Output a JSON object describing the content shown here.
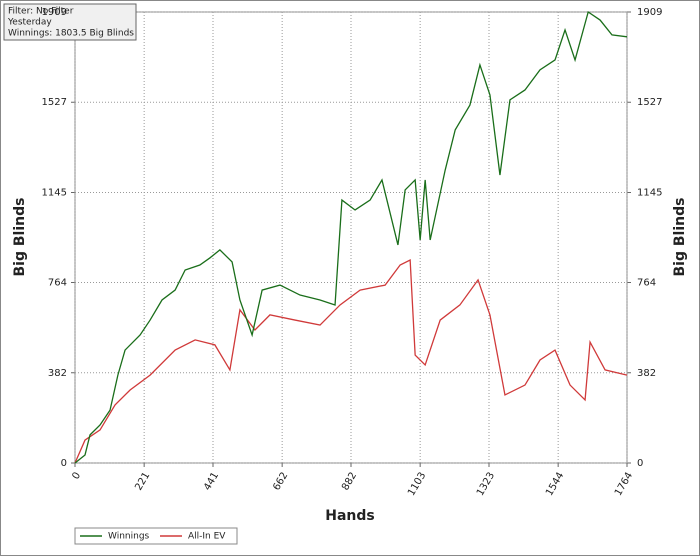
{
  "chart_data": {
    "type": "line",
    "annotations": [
      "Filter: No Filter",
      "Yesterday",
      "Winnings: 1803.5 Big Blinds"
    ],
    "xlabel": "Hands",
    "ylabel": "Big Blinds",
    "y2label": "Big Blinds",
    "xlim": [
      0,
      1764
    ],
    "xticks": [
      0,
      221,
      441,
      662,
      882,
      1103,
      1323,
      1544,
      1764
    ],
    "ylim": [
      0,
      1909
    ],
    "yticks": [
      0,
      382,
      764,
      1145,
      1527,
      1909
    ],
    "y2lim": [
      0,
      1909
    ],
    "y2ticks": [
      0,
      382,
      764,
      1145,
      1527,
      1909
    ],
    "grid": true,
    "legend": "bottom-left",
    "series": [
      {
        "name": "Winnings",
        "color": "#1a6e1a",
        "x": [
          0,
          32,
          48,
          80,
          112,
          137,
          160,
          208,
          240,
          278,
          320,
          352,
          399,
          431,
          463,
          502,
          527,
          566,
          598,
          655,
          719,
          783,
          831,
          853,
          895,
          943,
          981,
          1032,
          1055,
          1087,
          1103,
          1119,
          1135,
          1183,
          1215,
          1262,
          1294,
          1326,
          1358,
          1390,
          1438,
          1486,
          1534,
          1566,
          1598,
          1640,
          1678,
          1716,
          1764
        ],
        "values": [
          0,
          34,
          119,
          161,
          224,
          372,
          478,
          542,
          605,
          690,
          732,
          817,
          838,
          868,
          902,
          851,
          690,
          542,
          732,
          753,
          711,
          690,
          669,
          1113,
          1071,
          1113,
          1198,
          923,
          1156,
          1198,
          944,
          1198,
          944,
          1240,
          1410,
          1515,
          1685,
          1558,
          1219,
          1537,
          1579,
          1664,
          1706,
          1833,
          1706,
          1909,
          1875,
          1812,
          1804
        ]
      },
      {
        "name": "All-In EV",
        "color": "#d03a3a",
        "x": [
          0,
          32,
          80,
          128,
          176,
          240,
          320,
          384,
          447,
          495,
          527,
          575,
          623,
          703,
          783,
          847,
          911,
          991,
          1039,
          1071,
          1087,
          1119,
          1167,
          1230,
          1288,
          1326,
          1374,
          1438,
          1486,
          1534,
          1582,
          1630,
          1646,
          1694,
          1764
        ],
        "values": [
          0,
          97,
          140,
          246,
          309,
          372,
          478,
          521,
          500,
          394,
          648,
          563,
          627,
          605,
          584,
          669,
          732,
          753,
          838,
          859,
          457,
          415,
          605,
          669,
          775,
          627,
          288,
          330,
          436,
          478,
          330,
          267,
          512,
          394,
          372
        ]
      }
    ]
  }
}
